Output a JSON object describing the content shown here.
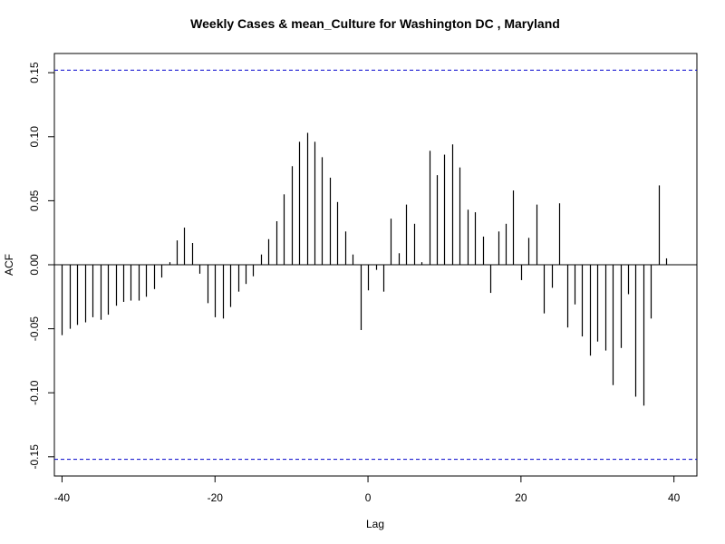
{
  "chart_data": {
    "type": "bar",
    "title": "Weekly Cases & mean_Culture for Washington DC , Maryland",
    "xlabel": "Lag",
    "ylabel": "ACF",
    "xlim": [
      -41,
      43
    ],
    "ylim": [
      -0.165,
      0.165
    ],
    "xticks": [
      -40,
      -20,
      0,
      20,
      40
    ],
    "yticks": [
      -0.15,
      -0.1,
      -0.05,
      0.0,
      0.05,
      0.1,
      0.15
    ],
    "xtick_labels": [
      "-40",
      "-20",
      "0",
      "20",
      "40"
    ],
    "ytick_labels": [
      "-0.15",
      "-0.10",
      "-0.05",
      "0.00",
      "0.05",
      "0.10",
      "0.15"
    ],
    "confidence_bound": 0.152,
    "colors": {
      "bars": "#000000",
      "confidence": "#0000cc",
      "zero_line": "#000000",
      "frame": "#000000"
    },
    "x": [
      -40,
      -39,
      -38,
      -37,
      -36,
      -35,
      -34,
      -33,
      -32,
      -31,
      -30,
      -29,
      -28,
      -27,
      -26,
      -25,
      -24,
      -23,
      -22,
      -21,
      -20,
      -19,
      -18,
      -17,
      -16,
      -15,
      -14,
      -13,
      -12,
      -11,
      -10,
      -9,
      -8,
      -7,
      -6,
      -5,
      -4,
      -3,
      -2,
      -1,
      0,
      1,
      2,
      3,
      4,
      5,
      6,
      7,
      8,
      9,
      10,
      11,
      12,
      13,
      14,
      15,
      16,
      17,
      18,
      19,
      20,
      21,
      22,
      23,
      24,
      25,
      26,
      27,
      28,
      29,
      30,
      31,
      32,
      33,
      34,
      35,
      36,
      37,
      38,
      39,
      40
    ],
    "values": [
      -0.055,
      -0.05,
      -0.047,
      -0.045,
      -0.041,
      -0.043,
      -0.039,
      -0.032,
      -0.029,
      -0.028,
      -0.028,
      -0.025,
      -0.019,
      -0.01,
      0.002,
      0.019,
      0.029,
      0.017,
      -0.007,
      -0.03,
      -0.041,
      -0.042,
      -0.033,
      -0.021,
      -0.015,
      -0.009,
      0.008,
      0.02,
      0.034,
      0.055,
      0.077,
      0.096,
      0.103,
      0.096,
      0.084,
      0.068,
      0.049,
      0.026,
      0.008,
      -0.051,
      -0.02,
      -0.004,
      -0.021,
      0.036,
      0.009,
      0.047,
      0.032,
      0.002,
      0.089,
      0.07,
      0.086,
      0.094,
      0.076,
      0.043,
      0.041,
      0.022,
      -0.022,
      0.026,
      0.032,
      0.058,
      -0.012,
      0.021,
      0.047,
      -0.038,
      -0.018,
      0.048,
      -0.049,
      -0.031,
      -0.056,
      -0.071,
      -0.06,
      -0.067,
      -0.094,
      -0.065,
      -0.023,
      -0.103,
      -0.11,
      -0.042,
      0.062,
      0.005,
      0.0
    ]
  }
}
